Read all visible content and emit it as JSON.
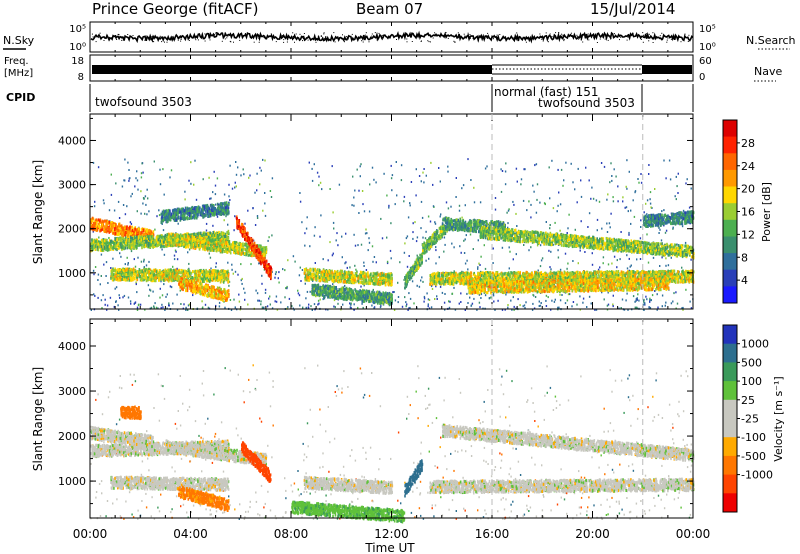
{
  "header": {
    "station": "Prince George (fitACF)",
    "beam": "Beam 07",
    "date": "15/Jul/2014"
  },
  "strips": {
    "nsky": {
      "label": "N.Sky",
      "ticks": [
        "10^5",
        "10^0"
      ]
    },
    "nsearch": {
      "label": "N.Search",
      "ticks": [
        "10^5",
        "10^0"
      ]
    },
    "freq": {
      "label_top": "Freq.",
      "label_bottom": "[MHz]",
      "ticks": [
        "18",
        "8"
      ]
    },
    "nave": {
      "label": "Nave",
      "ticks": [
        "60",
        "0"
      ]
    },
    "cpid": {
      "label": "CPID",
      "segments": [
        {
          "name": "twofsound 3503",
          "start_hr": 0,
          "end_hr": 16
        },
        {
          "name": "normal (fast) 151",
          "start_hr": 16,
          "end_hr": 22
        },
        {
          "name": "twofsound 3503",
          "start_hr": 16,
          "end_hr": 22
        }
      ]
    }
  },
  "x_axis": {
    "label": "Time UT",
    "ticks": [
      "00:00",
      "04:00",
      "08:00",
      "12:00",
      "16:00",
      "20:00",
      "00:00"
    ],
    "range_hr": [
      0,
      24
    ]
  },
  "power_panel": {
    "ylabel": "Slant Range [km]",
    "yticks": [
      "1000",
      "2000",
      "3000",
      "4000"
    ],
    "colorbar_label": "Power [dB]",
    "colorbar_ticks": [
      "28",
      "24",
      "20",
      "16",
      "12",
      "8",
      "4"
    ],
    "colors": [
      "#1a1aff",
      "#2a3fb8",
      "#2f6f9c",
      "#3a8f6e",
      "#4caf50",
      "#9acd32",
      "#ffd700",
      "#ff9900",
      "#ff6600",
      "#ff2200",
      "#dd0000"
    ]
  },
  "velocity_panel": {
    "ylabel": "Slant Range [km]",
    "yticks": [
      "1000",
      "2000",
      "3000",
      "4000"
    ],
    "colorbar_label": "Velocity [m s^-1]",
    "colorbar_ticks": [
      "1000",
      "500",
      "100",
      "25",
      "-25",
      "-100",
      "-500",
      "-1000"
    ],
    "colors": [
      "#2233bb",
      "#2d6f8f",
      "#3a9a5a",
      "#5fc13a",
      "#c8c8c0",
      "#c8c8c0",
      "#ffaa00",
      "#ff7700",
      "#ff4400",
      "#ee0000"
    ]
  },
  "chart_data": [
    {
      "type": "heatmap",
      "title": "Power [dB]",
      "xlabel": "Time UT",
      "ylabel": "Slant Range [km]",
      "xlim": [
        0,
        24
      ],
      "ylim": [
        180,
        4600
      ],
      "color_range": [
        0,
        30
      ],
      "bands": [
        {
          "t0": 0.0,
          "t1": 2.5,
          "r_start": 2150,
          "r_end": 1850,
          "power": 22
        },
        {
          "t0": 0.0,
          "t1": 5.5,
          "r_start": 1650,
          "r_end": 1850,
          "power": 14
        },
        {
          "t0": 0.8,
          "t1": 5.5,
          "r_start": 1000,
          "r_end": 950,
          "power": 16
        },
        {
          "t0": 2.8,
          "t1": 5.5,
          "r_start": 2300,
          "r_end": 2500,
          "power": 8
        },
        {
          "t0": 3.0,
          "t1": 7.0,
          "r_start": 1800,
          "r_end": 1500,
          "power": 16
        },
        {
          "t0": 3.5,
          "t1": 5.5,
          "r_start": 800,
          "r_end": 500,
          "power": 20
        },
        {
          "t0": 5.8,
          "t1": 7.2,
          "r_start": 2200,
          "r_end": 1000,
          "power": 27
        },
        {
          "t0": 8.5,
          "t1": 12.0,
          "r_start": 1000,
          "r_end": 880,
          "power": 16
        },
        {
          "t0": 8.8,
          "t1": 12.0,
          "r_start": 650,
          "r_end": 430,
          "power": 10
        },
        {
          "t0": 12.5,
          "t1": 13.2,
          "r_start": 800,
          "r_end": 1400,
          "power": 12
        },
        {
          "t0": 13.2,
          "t1": 14.3,
          "r_start": 1550,
          "r_end": 2150,
          "power": 12
        },
        {
          "t0": 14.0,
          "t1": 16.5,
          "r_start": 2150,
          "r_end": 2050,
          "power": 10
        },
        {
          "t0": 15.5,
          "t1": 24.0,
          "r_start": 1950,
          "r_end": 1500,
          "power": 14
        },
        {
          "t0": 13.5,
          "t1": 24.0,
          "r_start": 900,
          "r_end": 950,
          "power": 16
        },
        {
          "t0": 15.0,
          "t1": 23.0,
          "r_start": 700,
          "r_end": 780,
          "power": 18
        },
        {
          "t0": 22.0,
          "t1": 24.0,
          "r_start": 2200,
          "r_end": 2300,
          "power": 8
        }
      ]
    },
    {
      "type": "heatmap",
      "title": "Velocity [m s^-1]",
      "xlabel": "Time UT",
      "ylabel": "Slant Range [km]",
      "xlim": [
        0,
        24
      ],
      "ylim": [
        180,
        4600
      ],
      "color_range": [
        -1000,
        1000
      ],
      "bands": [
        {
          "t0": 0.0,
          "t1": 5.5,
          "r_start": 1700,
          "r_end": 1800,
          "velocity": 0
        },
        {
          "t0": 0.0,
          "t1": 2.5,
          "r_start": 2100,
          "r_end": 1900,
          "velocity": 0
        },
        {
          "t0": 0.8,
          "t1": 5.5,
          "r_start": 1000,
          "r_end": 950,
          "velocity": 0
        },
        {
          "t0": 1.2,
          "t1": 2.0,
          "r_start": 2550,
          "r_end": 2550,
          "velocity": -200
        },
        {
          "t0": 3.0,
          "t1": 7.0,
          "r_start": 1800,
          "r_end": 1500,
          "velocity": 0
        },
        {
          "t0": 3.5,
          "t1": 5.5,
          "r_start": 800,
          "r_end": 500,
          "velocity": -100
        },
        {
          "t0": 6.0,
          "t1": 7.2,
          "r_start": 1800,
          "r_end": 1100,
          "velocity": -400
        },
        {
          "t0": 8.5,
          "t1": 12.0,
          "r_start": 1000,
          "r_end": 880,
          "velocity": 0
        },
        {
          "t0": 8.0,
          "t1": 12.5,
          "r_start": 450,
          "r_end": 250,
          "velocity": 60
        },
        {
          "t0": 12.5,
          "t1": 13.2,
          "r_start": 800,
          "r_end": 1400,
          "velocity": 400
        },
        {
          "t0": 14.0,
          "t1": 24.0,
          "r_start": 2150,
          "r_end": 1600,
          "velocity": 0
        },
        {
          "t0": 13.5,
          "t1": 24.0,
          "r_start": 900,
          "r_end": 950,
          "velocity": 0
        }
      ]
    }
  ]
}
